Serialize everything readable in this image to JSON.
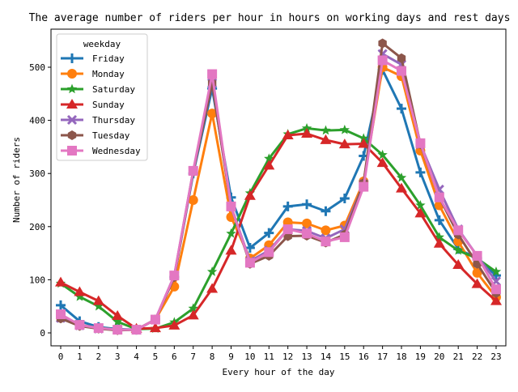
{
  "chart_data": {
    "type": "line",
    "title": "The average number of riders per hour in hours on working days and rest days",
    "xlabel": "Every hour of the day",
    "ylabel": "Number of riders",
    "x": [
      0,
      1,
      2,
      3,
      4,
      5,
      6,
      7,
      8,
      9,
      10,
      11,
      12,
      13,
      14,
      15,
      16,
      17,
      18,
      19,
      20,
      21,
      22,
      23
    ],
    "ylim": [
      -25,
      570
    ],
    "yticks": [
      0,
      100,
      200,
      300,
      400,
      500
    ],
    "legend": {
      "title": "weekday",
      "placement": "top-left"
    },
    "series": [
      {
        "name": "Friday",
        "color": "#1f77b4",
        "marker": "plus",
        "values": [
          52,
          22,
          11,
          7,
          6,
          25,
          105,
          300,
          460,
          255,
          160,
          188,
          238,
          242,
          229,
          253,
          333,
          495,
          422,
          302,
          212,
          158,
          140,
          108
        ]
      },
      {
        "name": "Monday",
        "color": "#ff7f0e",
        "marker": "circle",
        "values": [
          30,
          15,
          9,
          6,
          6,
          25,
          87,
          250,
          413,
          218,
          140,
          165,
          208,
          206,
          193,
          202,
          285,
          500,
          483,
          343,
          240,
          172,
          113,
          67
        ]
      },
      {
        "name": "Saturday",
        "color": "#2ca02c",
        "marker": "star",
        "values": [
          93,
          68,
          50,
          21,
          7,
          8,
          20,
          46,
          115,
          187,
          263,
          328,
          374,
          385,
          381,
          382,
          366,
          335,
          292,
          240,
          180,
          155,
          140,
          115
        ]
      },
      {
        "name": "Sunday",
        "color": "#d62728",
        "marker": "triangle",
        "values": [
          95,
          77,
          60,
          32,
          8,
          9,
          14,
          33,
          83,
          155,
          258,
          315,
          372,
          375,
          363,
          355,
          356,
          320,
          272,
          225,
          168,
          128,
          92,
          60
        ]
      },
      {
        "name": "Thursday",
        "color": "#9467bd",
        "marker": "x",
        "values": [
          28,
          14,
          8,
          6,
          6,
          25,
          108,
          305,
          470,
          238,
          135,
          155,
          195,
          192,
          178,
          195,
          280,
          525,
          505,
          355,
          270,
          195,
          145,
          97
        ]
      },
      {
        "name": "Tuesday",
        "color": "#8c564b",
        "marker": "hexagon",
        "values": [
          27,
          13,
          8,
          5,
          6,
          25,
          105,
          303,
          470,
          238,
          130,
          145,
          182,
          183,
          170,
          185,
          282,
          545,
          517,
          355,
          255,
          185,
          130,
          75
        ]
      },
      {
        "name": "Wednesday",
        "color": "#e377c2",
        "marker": "square",
        "values": [
          35,
          15,
          9,
          6,
          6,
          25,
          108,
          305,
          487,
          238,
          132,
          152,
          195,
          187,
          172,
          180,
          275,
          513,
          493,
          357,
          255,
          193,
          145,
          82
        ]
      }
    ]
  }
}
